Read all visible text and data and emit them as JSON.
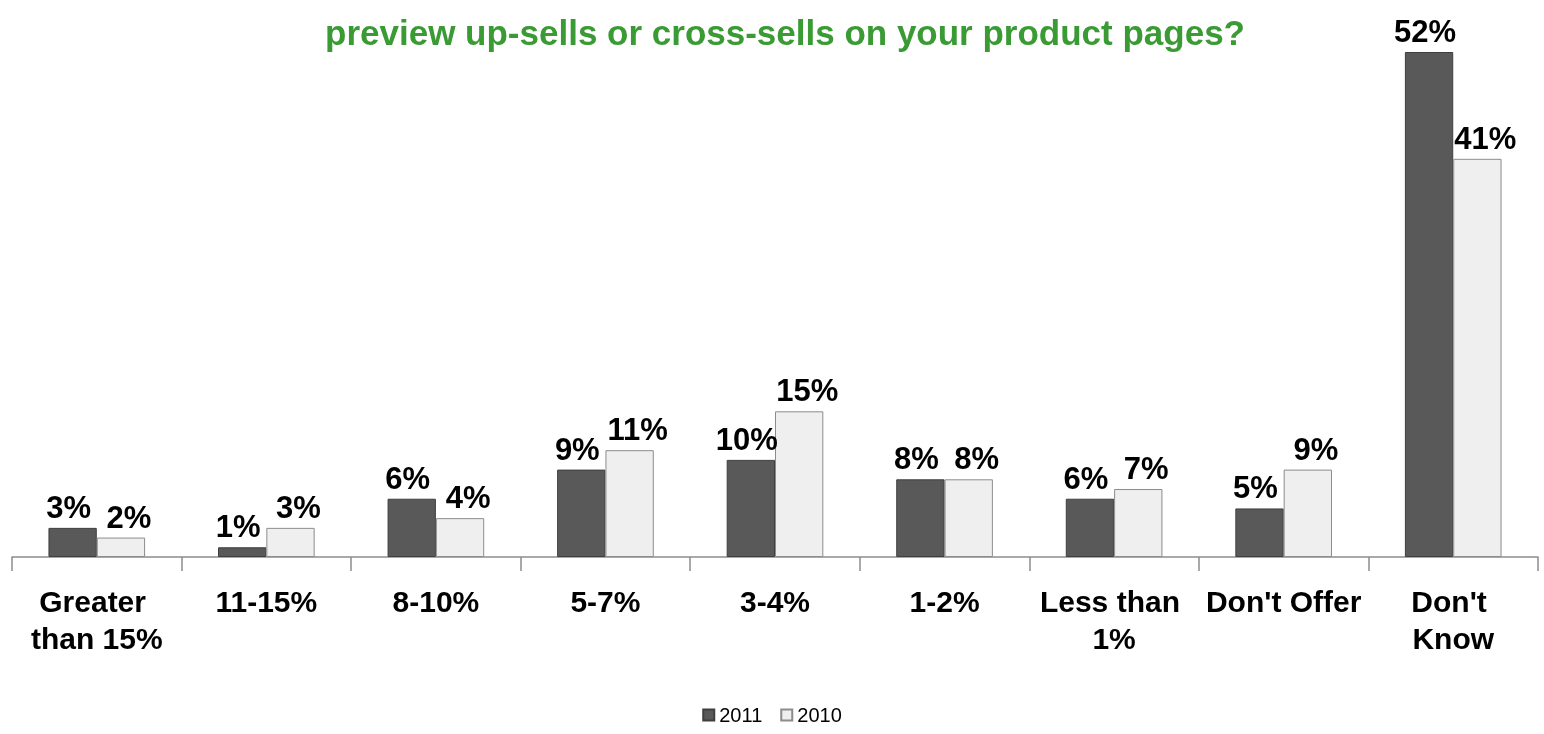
{
  "chart_data": {
    "type": "bar",
    "title": "preview up-sells or cross-sells on your product pages?",
    "categories": [
      "Greater than 15%",
      "11-15%",
      "8-10%",
      "5-7%",
      "3-4%",
      "1-2%",
      "Less than 1%",
      "Don't Offer",
      "Don't Know"
    ],
    "series": [
      {
        "name": "2011",
        "color": "#595959",
        "values": [
          3,
          1,
          6,
          9,
          10,
          8,
          6,
          5,
          52
        ],
        "value_labels": [
          "3%",
          "1%",
          "6%",
          "9%",
          "10%",
          "8%",
          "6%",
          "5%",
          "52%"
        ]
      },
      {
        "name": "2010",
        "color": "#efefef",
        "values": [
          2,
          3,
          4,
          11,
          15,
          8,
          7,
          9,
          41
        ],
        "value_labels": [
          "2%",
          "3%",
          "4%",
          "11%",
          "15%",
          "8%",
          "7%",
          "9%",
          "41%"
        ]
      }
    ],
    "legend": "bottom"
  }
}
